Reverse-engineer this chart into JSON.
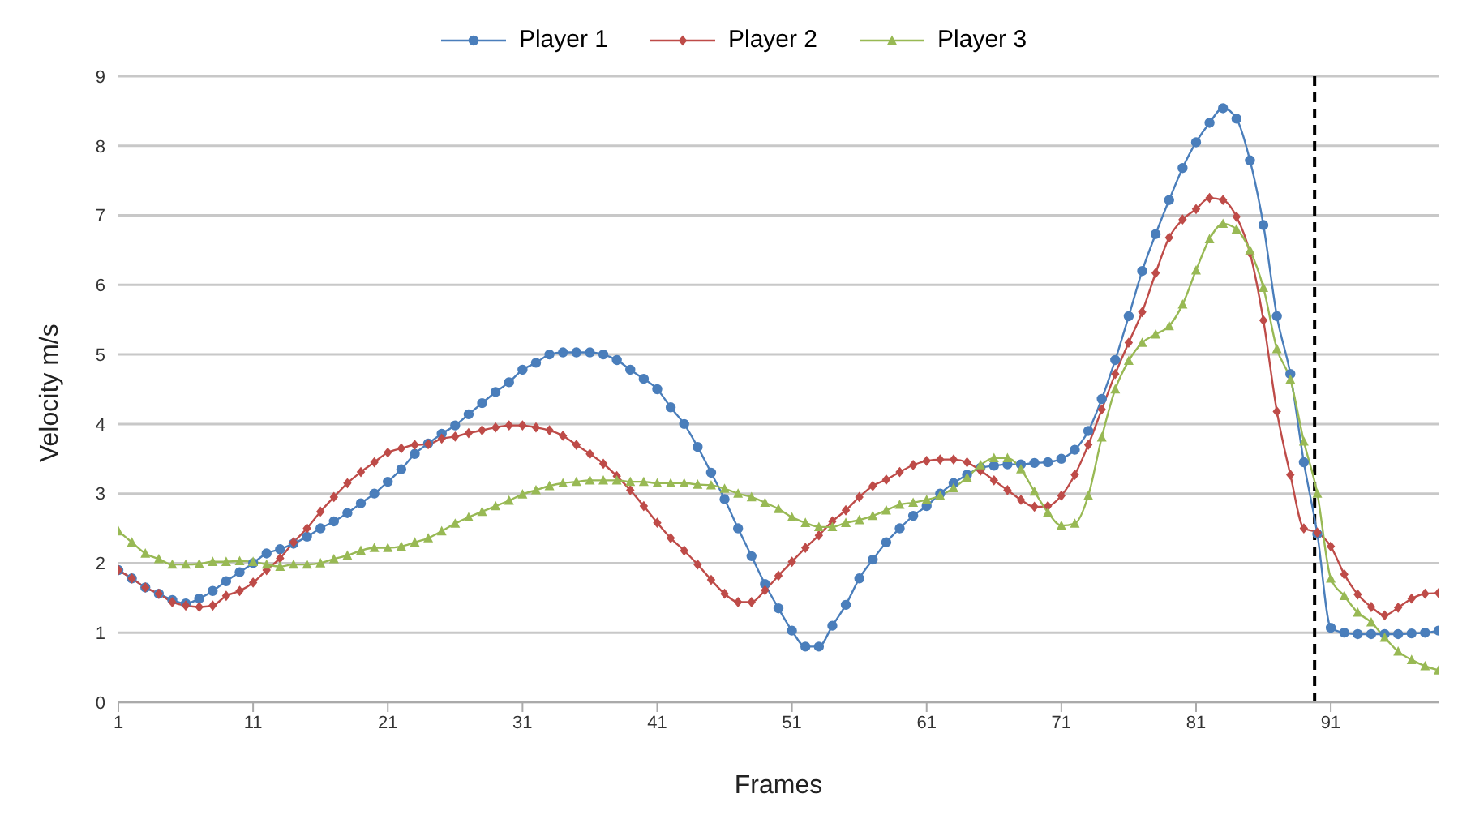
{
  "chart_data": {
    "type": "line",
    "xlabel": "Frames",
    "ylabel": "Velocity m/s",
    "x": [
      1,
      2,
      3,
      4,
      5,
      6,
      7,
      8,
      9,
      10,
      11,
      12,
      13,
      14,
      15,
      16,
      17,
      18,
      19,
      20,
      21,
      22,
      23,
      24,
      25,
      26,
      27,
      28,
      29,
      30,
      31,
      32,
      33,
      34,
      35,
      36,
      37,
      38,
      39,
      40,
      41,
      42,
      43,
      44,
      45,
      46,
      47,
      48,
      49,
      50,
      51,
      52,
      53,
      54,
      55,
      56,
      57,
      58,
      59,
      60,
      61,
      62,
      63,
      64,
      65,
      66,
      67,
      68,
      69,
      70,
      71,
      72,
      73,
      74,
      75,
      76,
      77,
      78,
      79,
      80,
      81,
      82,
      83,
      84,
      85,
      86,
      87,
      88,
      89,
      90,
      91,
      92,
      93,
      94,
      95,
      96,
      97,
      98,
      99
    ],
    "series": [
      {
        "name": "Player 1",
        "color": "#4a7ebb",
        "marker": "circle",
        "values": [
          1.9,
          1.78,
          1.65,
          1.56,
          1.47,
          1.42,
          1.49,
          1.6,
          1.74,
          1.87,
          2.0,
          2.14,
          2.2,
          2.28,
          2.38,
          2.5,
          2.6,
          2.72,
          2.86,
          3.0,
          3.17,
          3.35,
          3.57,
          3.72,
          3.86,
          3.98,
          4.14,
          4.3,
          4.46,
          4.6,
          4.78,
          4.88,
          5.0,
          5.03,
          5.03,
          5.03,
          5.0,
          4.92,
          4.78,
          4.65,
          4.5,
          4.24,
          4.0,
          3.67,
          3.3,
          2.92,
          2.5,
          2.1,
          1.7,
          1.35,
          1.03,
          0.8,
          0.8,
          1.1,
          1.4,
          1.78,
          2.05,
          2.3,
          2.5,
          2.68,
          2.82,
          3.0,
          3.15,
          3.27,
          3.37,
          3.4,
          3.42,
          3.42,
          3.44,
          3.45,
          3.5,
          3.63,
          3.9,
          4.36,
          4.92,
          5.55,
          6.2,
          6.73,
          7.22,
          7.68,
          8.05,
          8.33,
          8.54,
          8.39,
          7.79,
          6.86,
          5.55,
          4.72,
          3.45,
          2.42,
          1.07,
          1.0,
          0.98,
          0.98,
          0.98,
          0.98,
          0.99,
          1.0,
          1.03
        ]
      },
      {
        "name": "Player 2",
        "color": "#be4b48",
        "marker": "diamond",
        "values": [
          1.9,
          1.78,
          1.65,
          1.56,
          1.44,
          1.39,
          1.37,
          1.39,
          1.53,
          1.6,
          1.72,
          1.9,
          2.07,
          2.3,
          2.5,
          2.74,
          2.95,
          3.15,
          3.31,
          3.45,
          3.59,
          3.65,
          3.7,
          3.71,
          3.79,
          3.82,
          3.87,
          3.91,
          3.95,
          3.98,
          3.98,
          3.95,
          3.91,
          3.83,
          3.7,
          3.57,
          3.43,
          3.25,
          3.05,
          2.82,
          2.58,
          2.36,
          2.18,
          1.98,
          1.76,
          1.56,
          1.44,
          1.44,
          1.61,
          1.82,
          2.02,
          2.22,
          2.4,
          2.6,
          2.76,
          2.95,
          3.11,
          3.2,
          3.31,
          3.41,
          3.47,
          3.49,
          3.49,
          3.45,
          3.33,
          3.19,
          3.05,
          2.91,
          2.81,
          2.82,
          2.97,
          3.27,
          3.7,
          4.21,
          4.72,
          5.17,
          5.61,
          6.17,
          6.68,
          6.94,
          7.09,
          7.25,
          7.22,
          6.98,
          6.46,
          5.49,
          4.18,
          3.27,
          2.5,
          2.44,
          2.24,
          1.84,
          1.55,
          1.37,
          1.25,
          1.36,
          1.49,
          1.56,
          1.57
        ]
      },
      {
        "name": "Player 3",
        "color": "#98b954",
        "marker": "triangle",
        "values": [
          2.46,
          2.3,
          2.14,
          2.06,
          1.98,
          1.98,
          1.99,
          2.02,
          2.02,
          2.03,
          2.02,
          1.98,
          1.95,
          1.98,
          1.98,
          2.0,
          2.06,
          2.11,
          2.18,
          2.22,
          2.22,
          2.24,
          2.3,
          2.36,
          2.46,
          2.57,
          2.66,
          2.74,
          2.82,
          2.9,
          2.99,
          3.05,
          3.11,
          3.15,
          3.17,
          3.19,
          3.19,
          3.19,
          3.17,
          3.17,
          3.15,
          3.15,
          3.15,
          3.13,
          3.12,
          3.07,
          3.0,
          2.95,
          2.87,
          2.78,
          2.66,
          2.58,
          2.52,
          2.52,
          2.58,
          2.62,
          2.68,
          2.76,
          2.84,
          2.87,
          2.91,
          2.97,
          3.08,
          3.23,
          3.41,
          3.51,
          3.51,
          3.35,
          3.03,
          2.73,
          2.54,
          2.57,
          2.97,
          3.81,
          4.5,
          4.91,
          5.17,
          5.29,
          5.41,
          5.72,
          6.21,
          6.66,
          6.88,
          6.8,
          6.5,
          5.96,
          5.08,
          4.64,
          3.75,
          3.0,
          1.78,
          1.53,
          1.29,
          1.15,
          0.93,
          0.73,
          0.61,
          0.52,
          0.46
        ]
      }
    ],
    "xlim": [
      1,
      99
    ],
    "xticks": [
      1,
      11,
      21,
      31,
      41,
      51,
      61,
      71,
      81,
      91
    ],
    "ylim": [
      0,
      9
    ],
    "yticks": [
      0,
      1,
      2,
      3,
      4,
      5,
      6,
      7,
      8,
      9
    ],
    "grid": "y",
    "legend": "top",
    "line_style": "solid",
    "ref_lines": [
      {
        "axis": "x",
        "value": 89.8,
        "color": "#000000",
        "line_style": "dashed"
      }
    ]
  }
}
